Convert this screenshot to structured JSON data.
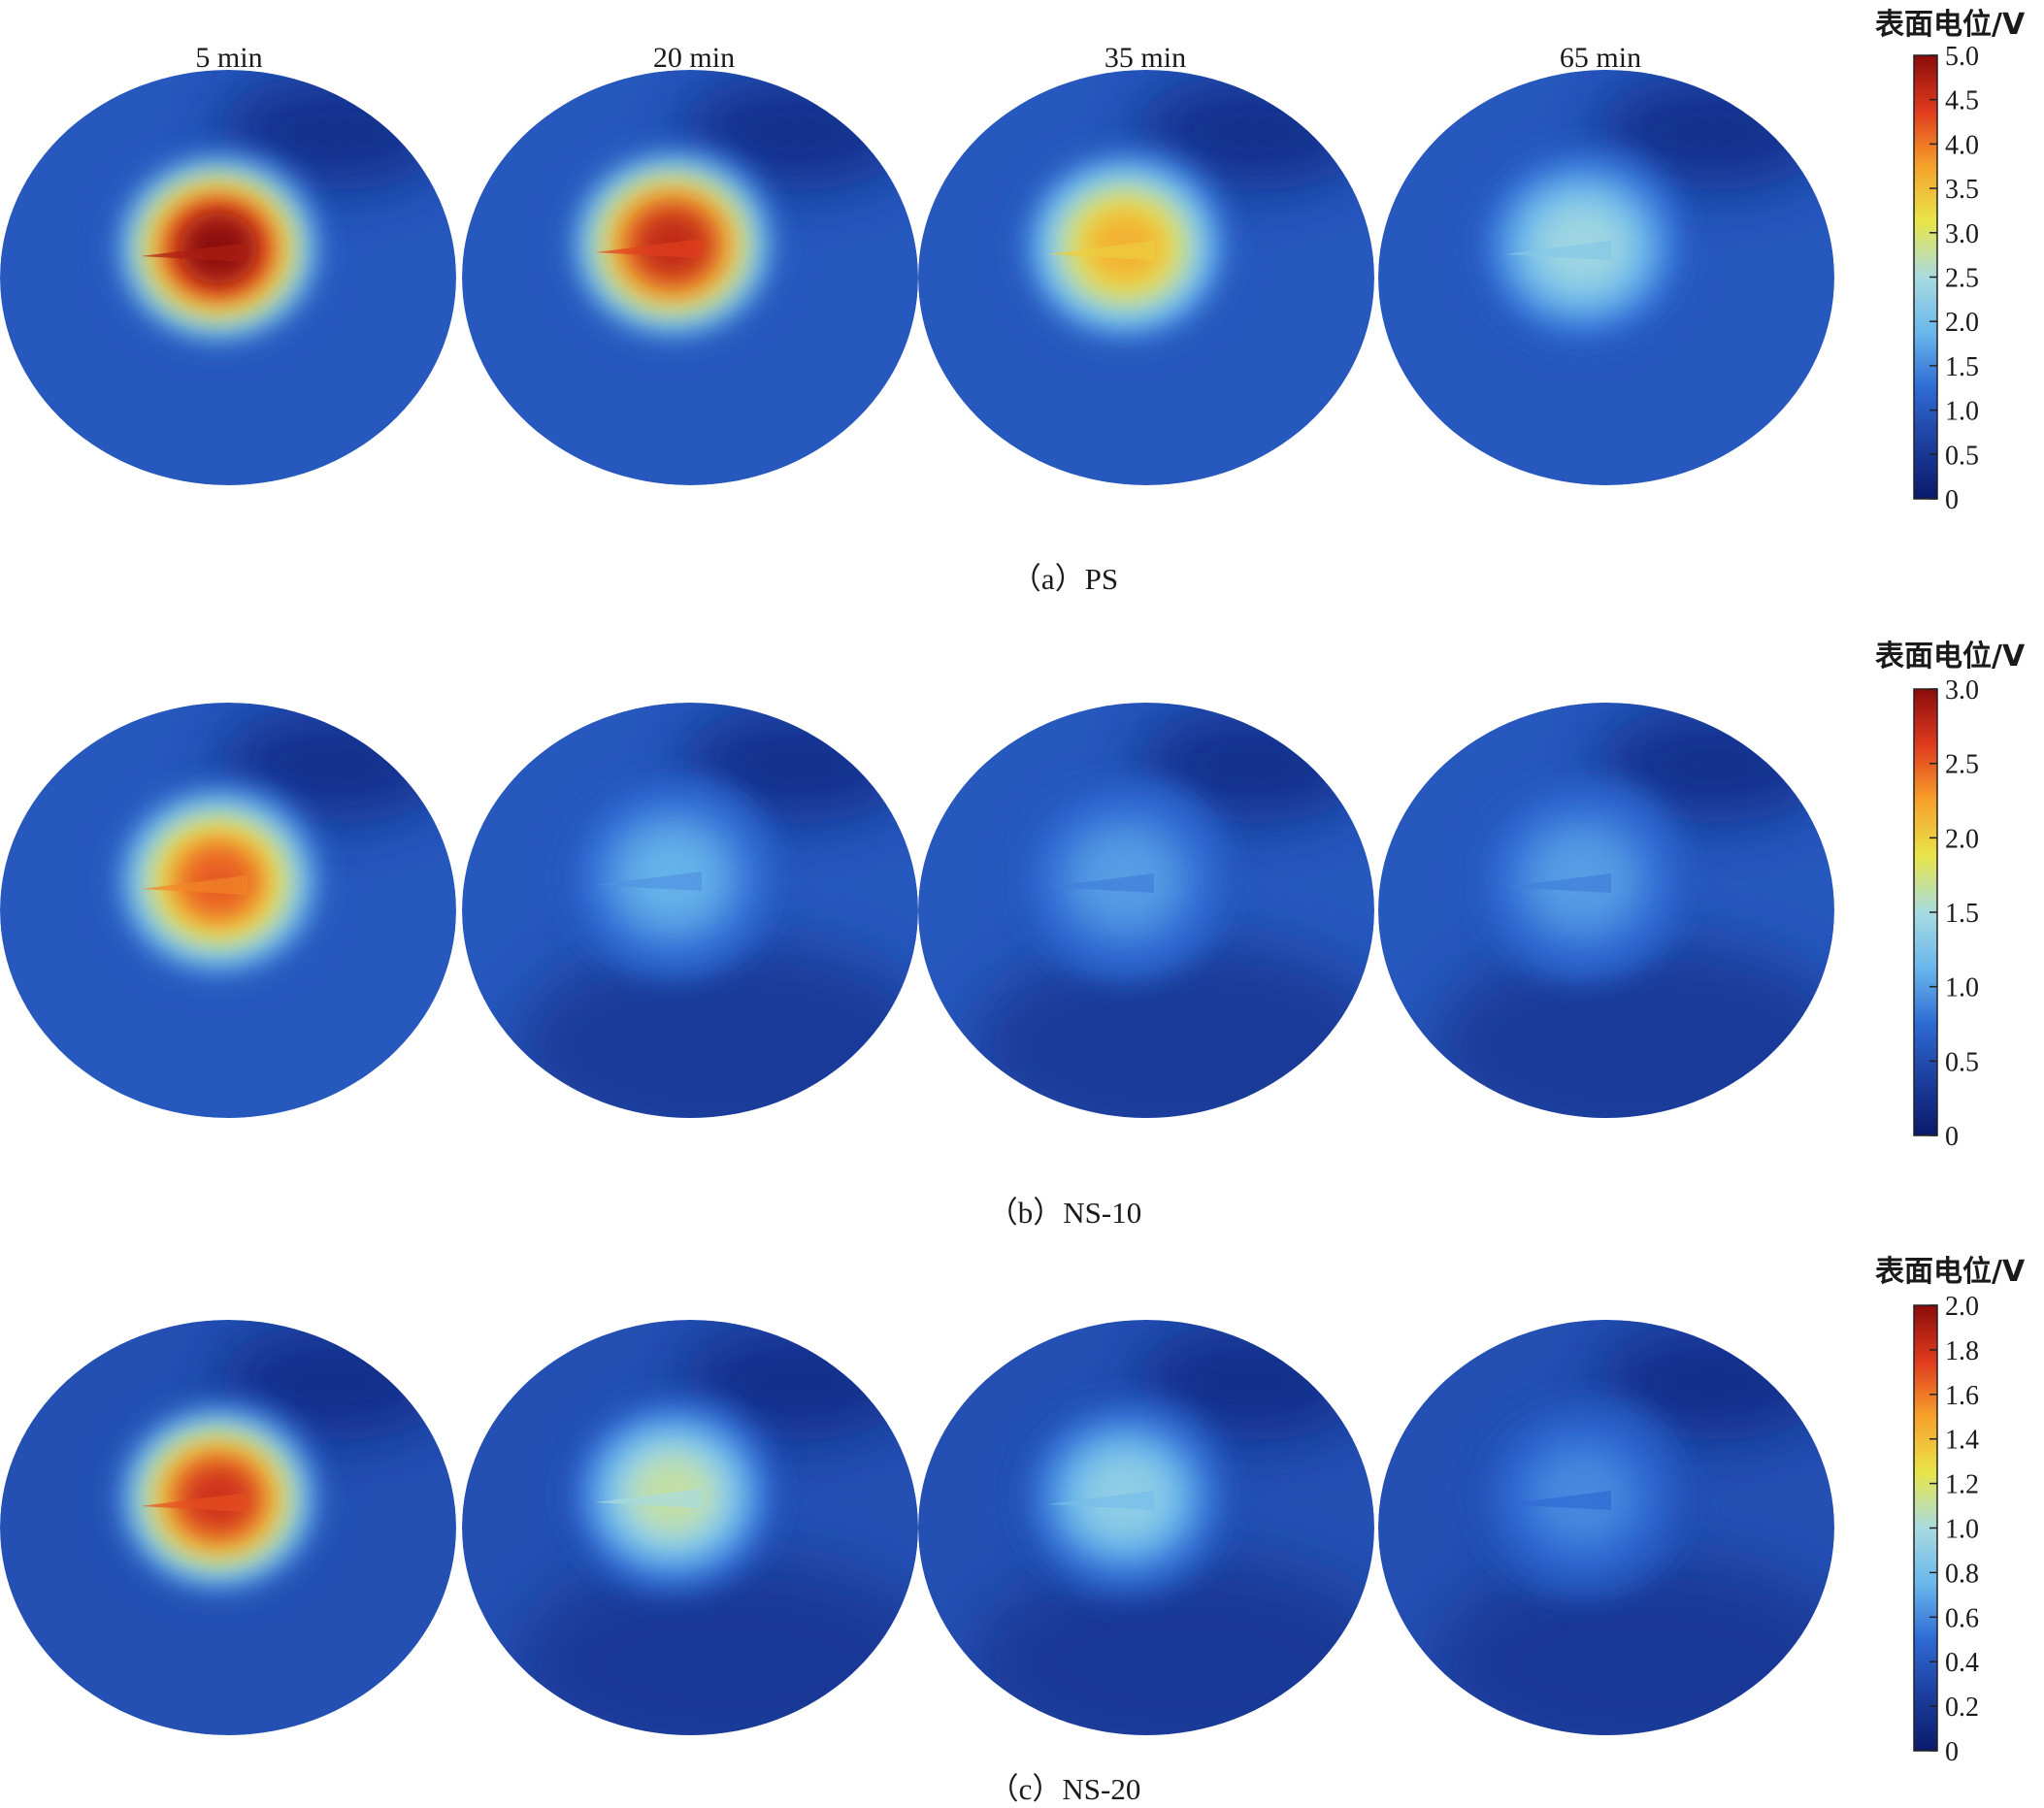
{
  "figure": {
    "time_labels": [
      "5 min",
      "20 min",
      "35 min",
      "65 min"
    ],
    "colorbar_title": "表面电位/V",
    "colormap": [
      "#0a1a6b",
      "#1c3e9e",
      "#2f6ad4",
      "#69b7ec",
      "#a8dbe0",
      "#e8e54a",
      "#f7a12b",
      "#e03a1d",
      "#8a0c0c"
    ]
  },
  "chart_data": [
    {
      "type": "heatmap",
      "caption": "（a）PS",
      "times": [
        "5 min",
        "20 min",
        "35 min",
        "65 min"
      ],
      "colorbar": {
        "label": "表面电位/V",
        "min": 0,
        "max": 5.0,
        "ticks": [
          "5.0",
          "4.5",
          "4.0",
          "3.5",
          "3.0",
          "2.5",
          "2.0",
          "1.5",
          "1.0",
          "0.5",
          "0"
        ]
      },
      "background_value": 1.0,
      "peak_values": [
        5.0,
        4.6,
        3.6,
        2.4
      ]
    },
    {
      "type": "heatmap",
      "caption": "（b）NS-10",
      "times": [
        "5 min",
        "20 min",
        "35 min",
        "65 min"
      ],
      "colorbar": {
        "label": "表面电位/V",
        "min": 0,
        "max": 3.0,
        "ticks": [
          "3.0",
          "2.5",
          "2.0",
          "1.5",
          "1.0",
          "0.5",
          "0"
        ]
      },
      "background_value": 0.6,
      "peak_values": [
        2.5,
        1.1,
        1.0,
        1.0
      ]
    },
    {
      "type": "heatmap",
      "caption": "（c）NS-20",
      "times": [
        "5 min",
        "20 min",
        "35 min",
        "65 min"
      ],
      "colorbar": {
        "label": "表面电位/V",
        "min": 0,
        "max": 2.0,
        "ticks": [
          "2.0",
          "1.8",
          "1.6",
          "1.4",
          "1.2",
          "1.0",
          "0.8",
          "0.6",
          "0.4",
          "0.2",
          "0"
        ]
      },
      "background_value": 0.35,
      "peak_values": [
        1.8,
        1.1,
        0.9,
        0.6
      ]
    }
  ]
}
